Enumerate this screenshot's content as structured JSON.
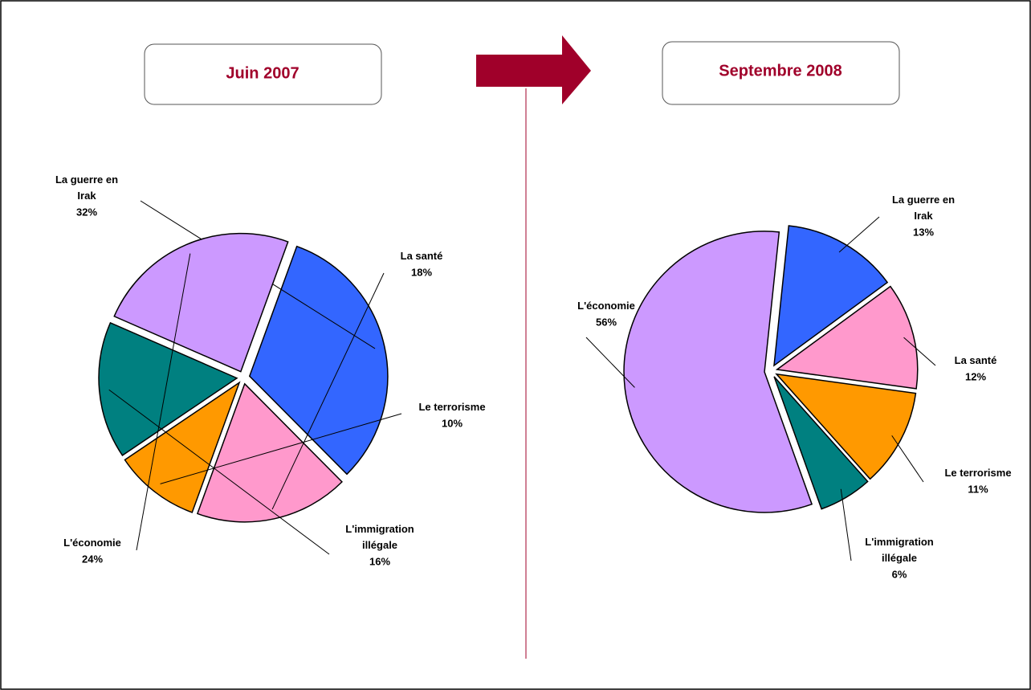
{
  "chart_data": [
    {
      "type": "pie",
      "title": "Juin 2007",
      "categories": [
        "La guerre en Irak",
        "La santé",
        "Le terrorisme",
        "L'immigration illégale",
        "L'économie"
      ],
      "values": [
        32,
        18,
        10,
        16,
        24
      ],
      "value_labels": [
        "32%",
        "18%",
        "10%",
        "16%",
        "24%"
      ],
      "colors": [
        "#3366ff",
        "#ff99cc",
        "#ff9900",
        "#008080",
        "#cc99ff"
      ]
    },
    {
      "type": "pie",
      "title": "Septembre 2008",
      "categories": [
        "La guerre en Irak",
        "La santé",
        "Le terrorisme",
        "L'immigration illégale",
        "L'économie"
      ],
      "values": [
        13,
        12,
        11,
        6,
        56
      ],
      "value_labels": [
        "13%",
        "12%",
        "11%",
        "6%",
        "56%"
      ],
      "colors": [
        "#3366ff",
        "#ff99cc",
        "#ff9900",
        "#008080",
        "#cc99ff"
      ]
    }
  ]
}
